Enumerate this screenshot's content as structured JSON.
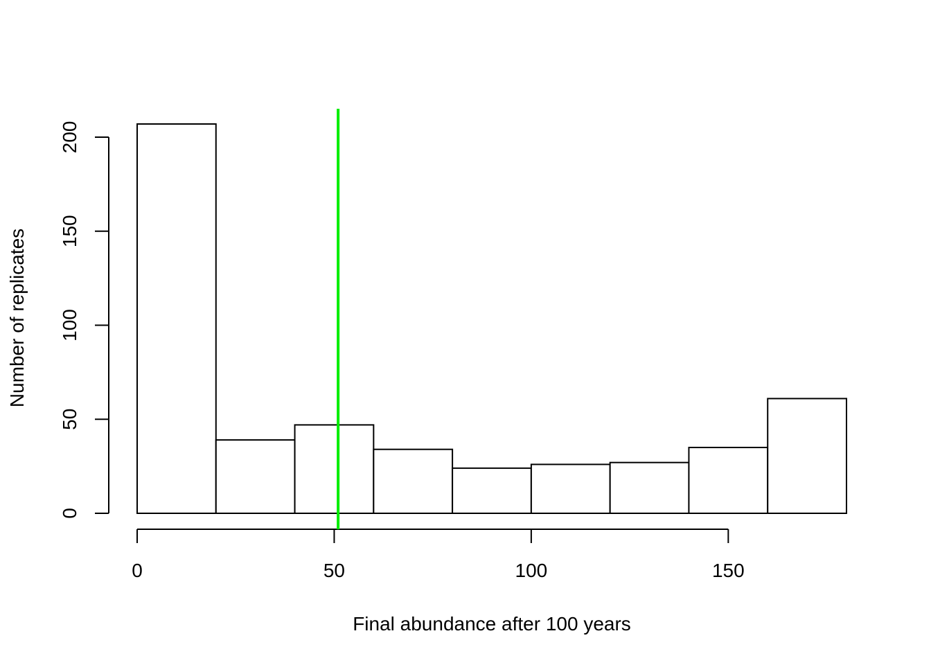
{
  "chart_data": {
    "type": "bar",
    "title": "",
    "xlabel": "Final abundance after 100 years",
    "ylabel": "Number of replicates",
    "bin_edges": [
      0,
      20,
      40,
      60,
      80,
      100,
      120,
      140,
      160,
      180
    ],
    "counts": [
      207,
      39,
      47,
      34,
      24,
      26,
      27,
      35,
      61
    ],
    "xlim": [
      0,
      180
    ],
    "ylim": [
      0,
      215
    ],
    "x_ticks": [
      0,
      50,
      100,
      150
    ],
    "x_tick_labels": [
      "0",
      "50",
      "100",
      "150"
    ],
    "y_ticks": [
      0,
      50,
      100,
      150,
      200
    ],
    "y_tick_labels": [
      "0",
      "50",
      "100",
      "150",
      "200"
    ],
    "reference_line": {
      "x": 51,
      "color": "#00ee00"
    },
    "bar_fill": "#ffffff",
    "bar_stroke": "#000000",
    "grid": false,
    "legend": "none"
  }
}
